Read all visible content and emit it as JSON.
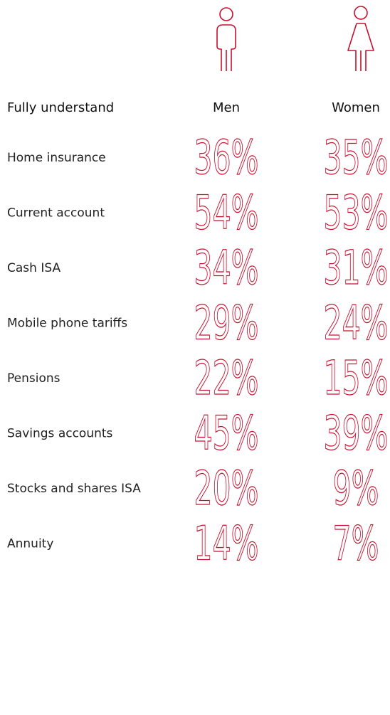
{
  "table": {
    "header": [
      "Fully understand",
      "Men",
      "Women"
    ],
    "rows": [
      [
        "Home insurance",
        "36%",
        "35%"
      ],
      [
        "Current account",
        "54%",
        "53%"
      ],
      [
        "Cash ISA",
        "34%",
        "31%"
      ],
      [
        "Mobile phone tariffs",
        "29%",
        "24%"
      ],
      [
        "Pensions",
        "22%",
        "15%"
      ],
      [
        "Savings accounts",
        "45%",
        "39%"
      ],
      [
        "Stocks and shares ISA",
        "20%",
        "9%"
      ],
      [
        "Annuity",
        "14%",
        "7%"
      ]
    ]
  }
}
